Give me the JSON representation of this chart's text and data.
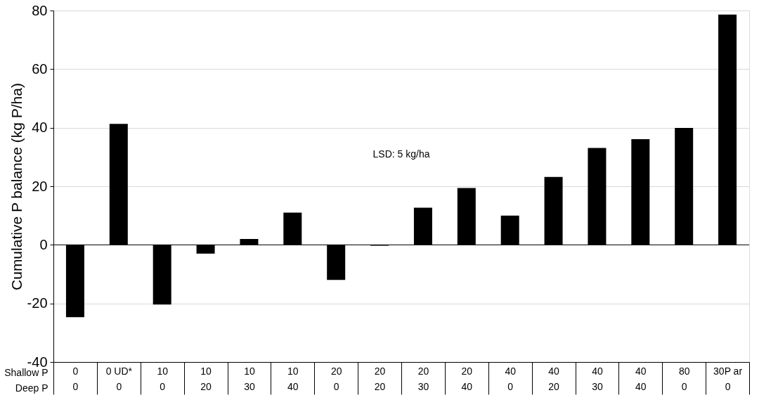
{
  "chart_data": {
    "type": "bar",
    "ylabel": "Cumulative P balance (kg P/ha)",
    "xlabel": "Shallow P\nDeep P",
    "categories": [
      "0\n0",
      "0 UD*\n0",
      "10\n0",
      "10\n20",
      "10\n30",
      "10\n40",
      "20\n0",
      "20\n20",
      "20\n30",
      "20\n40",
      "40\n0",
      "40\n20",
      "40\n30",
      "40\n40",
      "80\n0",
      "30P ar\n0"
    ],
    "values": [
      -24.7,
      41.3,
      -20.4,
      -3.0,
      2.0,
      11.0,
      -12.0,
      -0.3,
      12.7,
      19.4,
      10.0,
      23.2,
      33.1,
      36.1,
      39.9,
      78.6
    ],
    "color": "#000000",
    "ylim": [
      -40,
      80
    ],
    "yticks": [
      -40,
      -20,
      0,
      20,
      40,
      60,
      80
    ],
    "grid": "y",
    "annotations": [
      "LSD: 5 kg/ha"
    ]
  }
}
